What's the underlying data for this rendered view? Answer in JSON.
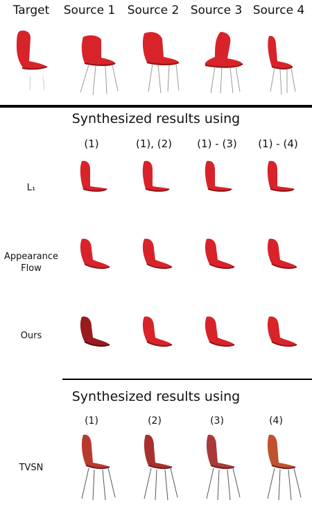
{
  "header": {
    "columns": [
      "Target",
      "Source 1",
      "Source 2",
      "Source 3",
      "Source 4"
    ]
  },
  "section1": {
    "title": "Synthesized results using",
    "columns": [
      "(1)",
      "(1), (2)",
      "(1) - (3)",
      "(1) - (4)"
    ],
    "rows": [
      {
        "label": "L₁"
      },
      {
        "label_line1": "Appearance",
        "label_line2": "Flow"
      },
      {
        "label": "Ours"
      }
    ]
  },
  "section2": {
    "title": "Synthesized results using",
    "columns": [
      "(1)",
      "(2)",
      "(3)",
      "(4)"
    ],
    "rows": [
      {
        "label": "TVSN"
      }
    ]
  },
  "colors": {
    "chair_red": "#d8232a",
    "chair_dark": "#8e1418",
    "chair_ours": "#9a1a1e",
    "chair_tvsn": "#b83a2e",
    "rule": "#000000"
  }
}
